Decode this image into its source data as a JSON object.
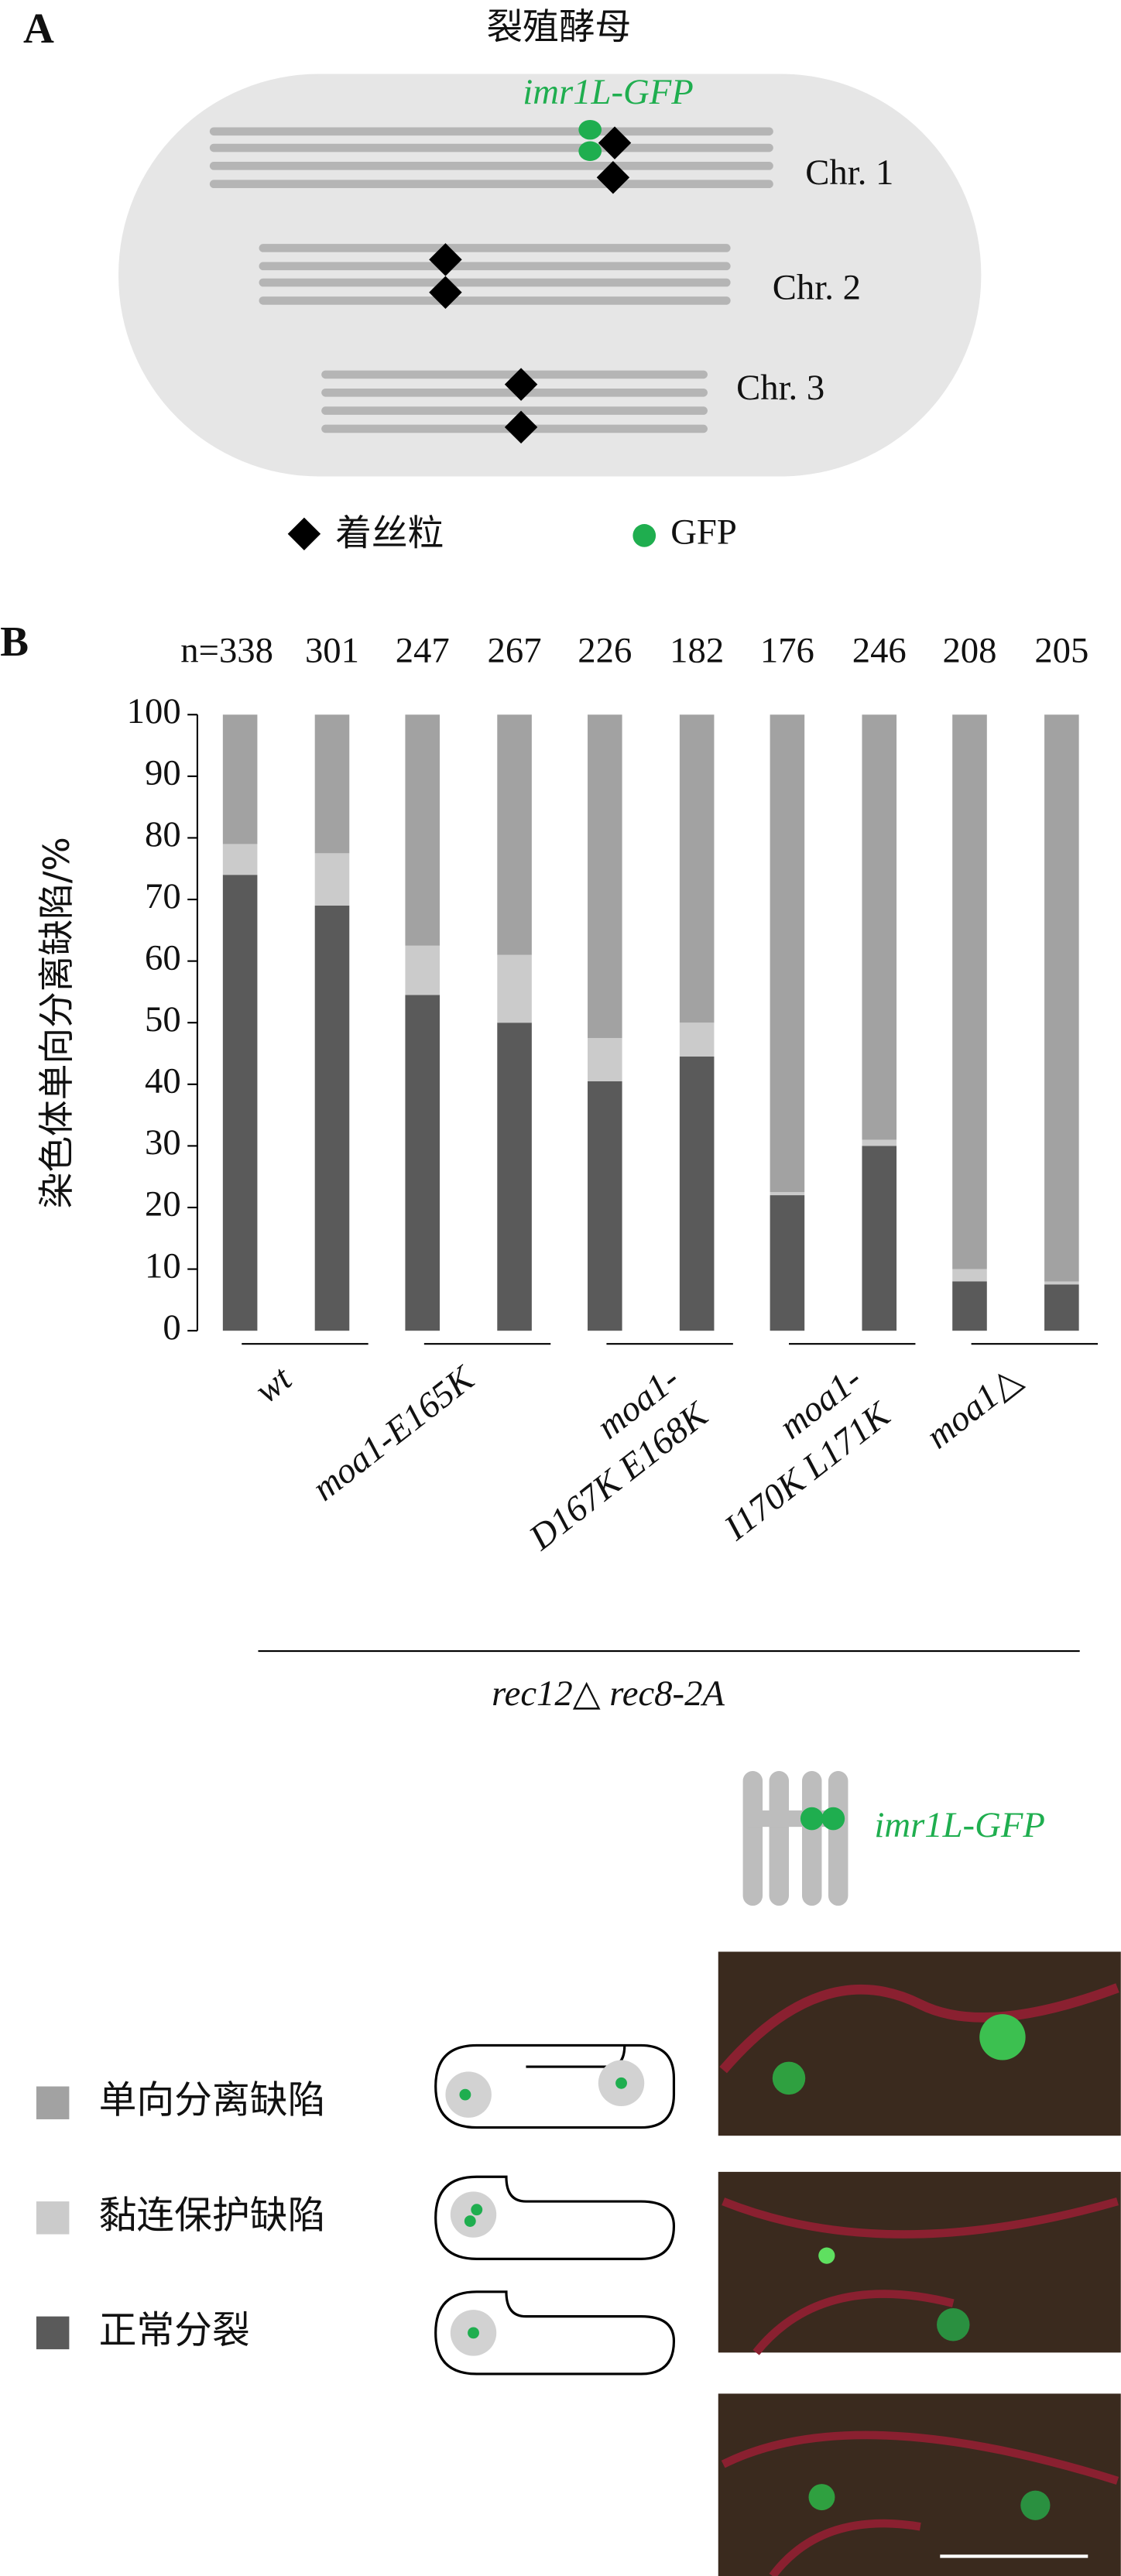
{
  "panel_a": {
    "label": "A",
    "title": "裂殖酵母",
    "gfp_label": "imr1L-GFP",
    "chromosomes": [
      "Chr. 1",
      "Chr. 2",
      "Chr. 3"
    ],
    "legend": [
      "着丝粒",
      "GFP"
    ]
  },
  "panel_b": {
    "label": "B",
    "group_labels": [
      [
        "wt"
      ],
      [
        "moa1-E165K"
      ],
      [
        "moa1-",
        "D167K E168K"
      ],
      [
        "moa1-",
        "I170K L171K"
      ],
      [
        "moa1△"
      ]
    ],
    "genotype": "rec12△ rec8-2A",
    "gfp_label": "imr1L-GFP"
  },
  "chart_data": {
    "type": "stacked_bar",
    "ylabel": "染色体单向分离缺陷/%",
    "categories": [
      null,
      null,
      null,
      null,
      null,
      null,
      null,
      null,
      null,
      null
    ],
    "n_labels": [
      "n=338",
      "301",
      "247",
      "267",
      "226",
      "182",
      "176",
      "246",
      "208",
      "205"
    ],
    "series": [
      {
        "name": "正常分裂",
        "color": "#5a5a5a",
        "values": [
          74,
          69,
          54.5,
          50,
          40.5,
          44.5,
          22,
          30,
          8,
          7.5
        ]
      },
      {
        "name": "黏连保护缺陷",
        "color": "#cbcbcb",
        "values": [
          5,
          8.5,
          8,
          11,
          7,
          5.5,
          0.5,
          1,
          2,
          0.5
        ]
      },
      {
        "name": "单向分离缺陷",
        "color": "#a2a2a2",
        "values": [
          21,
          22.5,
          37.5,
          39,
          52.5,
          50,
          77.5,
          69,
          90,
          92
        ]
      }
    ],
    "ylim": [
      0,
      100
    ],
    "yticks": [
      0,
      10,
      20,
      30,
      40,
      50,
      60,
      70,
      80,
      90,
      100
    ]
  }
}
